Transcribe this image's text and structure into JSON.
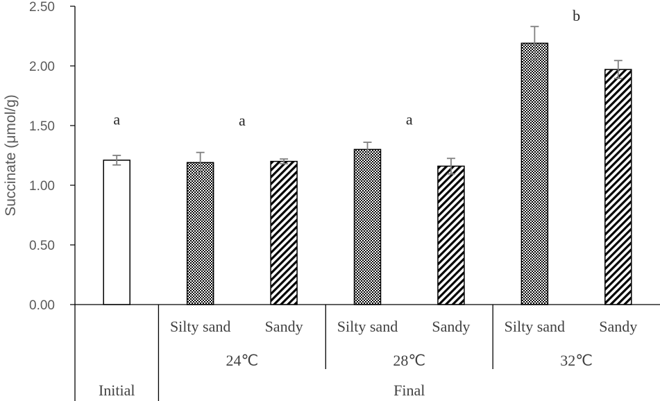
{
  "chart_data": {
    "type": "bar",
    "ylabel": "Succinate (μmol/g)",
    "ylim": [
      0,
      2.5
    ],
    "yticks": [
      "0.00",
      "0.50",
      "1.00",
      "1.50",
      "2.00",
      "2.50"
    ],
    "bars": [
      {
        "group": "Initial",
        "soil": "",
        "value": 1.21,
        "error": 0.04,
        "pattern": "white"
      },
      {
        "group": "24℃",
        "soil": "Silty sand",
        "value": 1.19,
        "error": 0.085,
        "pattern": "checker"
      },
      {
        "group": "24℃",
        "soil": "Sandy",
        "value": 1.2,
        "error": 0.02,
        "pattern": "diagonal"
      },
      {
        "group": "28℃",
        "soil": "Silty sand",
        "value": 1.3,
        "error": 0.06,
        "pattern": "checker"
      },
      {
        "group": "28℃",
        "soil": "Sandy",
        "value": 1.16,
        "error": 0.065,
        "pattern": "diagonal"
      },
      {
        "group": "32℃",
        "soil": "Silty sand",
        "value": 2.19,
        "error": 0.14,
        "pattern": "checker"
      },
      {
        "group": "32℃",
        "soil": "Sandy",
        "value": 1.97,
        "error": 0.075,
        "pattern": "diagonal"
      }
    ],
    "significance": [
      {
        "label": "a",
        "value": 1.55
      },
      {
        "label": "a",
        "value": 1.54
      },
      {
        "label": "a",
        "value": 1.55
      },
      {
        "label": "b",
        "value": 2.42
      }
    ],
    "category_levels": {
      "soil": [
        "Silty sand",
        "Sandy",
        "Silty sand",
        "Sandy",
        "Silty sand",
        "Sandy"
      ],
      "temperature": [
        "24℃",
        "28℃",
        "32℃"
      ],
      "stage": [
        "Initial",
        "Final"
      ]
    },
    "grid": false,
    "legend": "none",
    "colors": {
      "axis": "#000000",
      "bar_edge": "#000000",
      "error_bar": "#7f7f7f",
      "text": "#595959"
    }
  }
}
